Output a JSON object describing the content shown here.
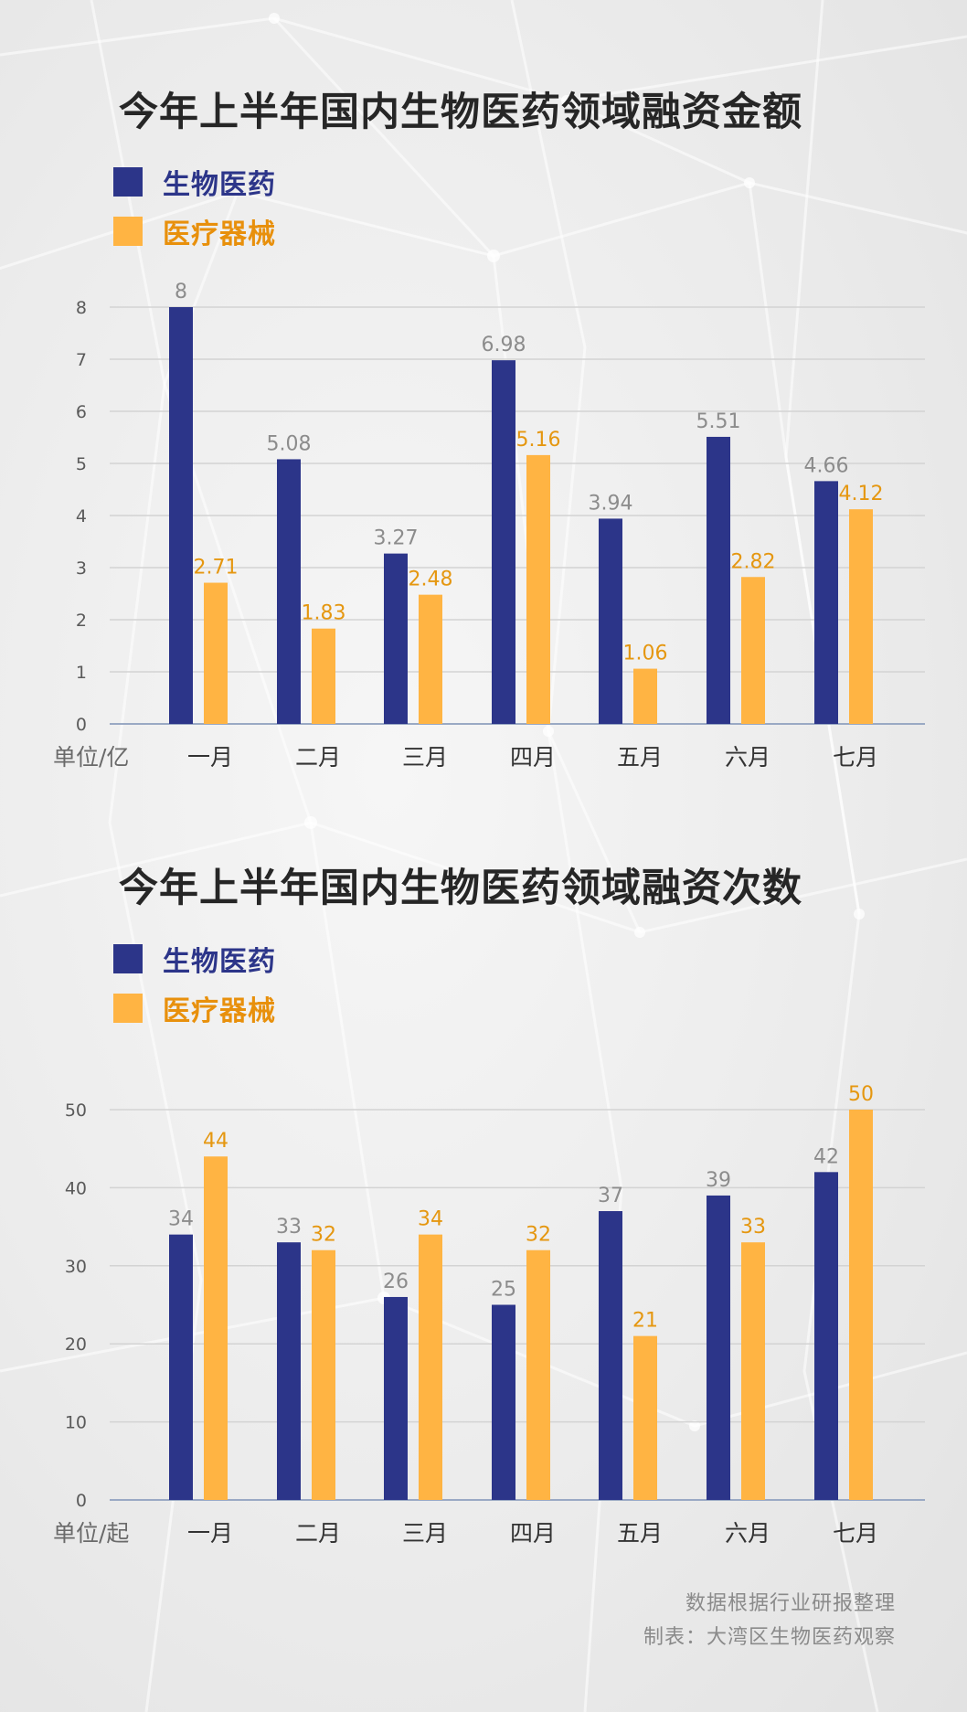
{
  "colors": {
    "biopharma": "#2c3589",
    "medical_devices": "#ffb443",
    "value_label_biopharma": "#8c8c8c",
    "value_label_devices": "#e59710",
    "gridline": "#d3d3d3",
    "axis": "#9aa9c4"
  },
  "chart_data": [
    {
      "type": "bar",
      "title": "今年上半年国内生物医药领域融资金额",
      "categories": [
        "一月",
        "二月",
        "三月",
        "四月",
        "五月",
        "六月",
        "七月"
      ],
      "series": [
        {
          "name": "生物医药",
          "values": [
            8,
            5.08,
            3.27,
            6.98,
            3.94,
            5.51,
            4.66
          ],
          "labels": [
            "8",
            "5.08",
            "3.27",
            "6.98",
            "3.94",
            "5.51",
            "4.66"
          ]
        },
        {
          "name": "医疗器械",
          "values": [
            2.71,
            1.83,
            2.48,
            5.16,
            1.06,
            2.82,
            4.12
          ],
          "labels": [
            "2.71",
            "1.83",
            "2.48",
            "5.16",
            "1.06",
            "2.82",
            "4.12"
          ]
        }
      ],
      "unit_label": "单位/亿",
      "ylim": [
        0,
        8
      ],
      "yticks": [
        0,
        1,
        2,
        3,
        4,
        5,
        6,
        7,
        8
      ],
      "grid": true,
      "legend_position": "top-left"
    },
    {
      "type": "bar",
      "title": "今年上半年国内生物医药领域融资次数",
      "categories": [
        "一月",
        "二月",
        "三月",
        "四月",
        "五月",
        "六月",
        "七月"
      ],
      "series": [
        {
          "name": "生物医药",
          "values": [
            34,
            33,
            26,
            25,
            37,
            39,
            42
          ],
          "labels": [
            "34",
            "33",
            "26",
            "25",
            "37",
            "39",
            "42"
          ]
        },
        {
          "name": "医疗器械",
          "values": [
            44,
            32,
            34,
            32,
            21,
            33,
            50
          ],
          "labels": [
            "44",
            "32",
            "34",
            "32",
            "21",
            "33",
            "50"
          ]
        }
      ],
      "unit_label": "单位/起",
      "ylim": [
        0,
        50
      ],
      "yticks": [
        0,
        10,
        20,
        30,
        40,
        50
      ],
      "grid": true,
      "legend_position": "top-left"
    }
  ],
  "footer": {
    "source": "数据根据行业研报整理",
    "credit": "制表：大湾区生物医药观察"
  }
}
